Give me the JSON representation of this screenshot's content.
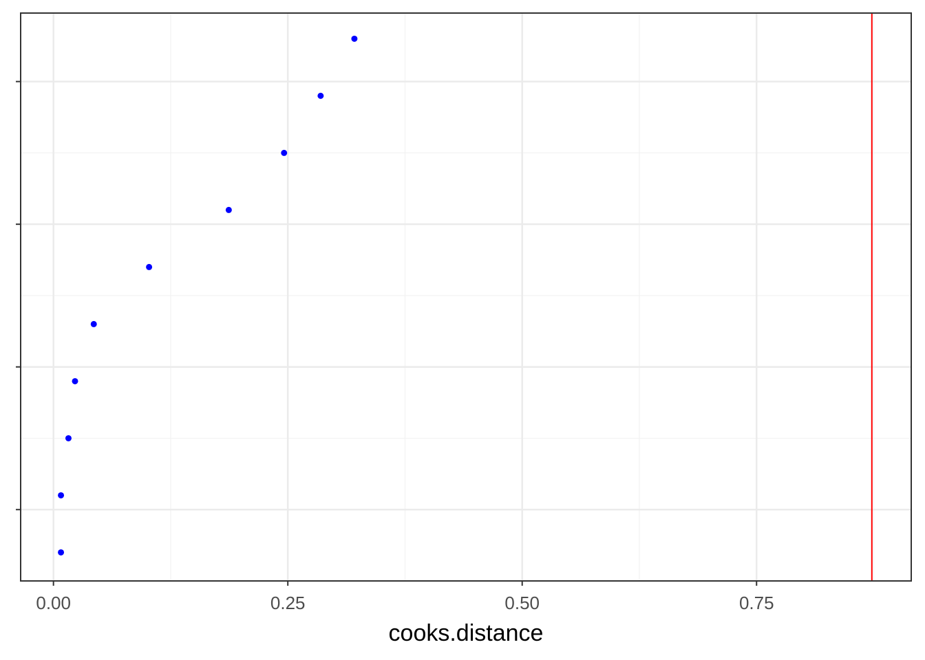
{
  "chart_data": {
    "type": "scatter",
    "title": "",
    "xlabel": "cooks.distance",
    "ylabel": "",
    "xlim": [
      -0.035,
      0.915
    ],
    "ylim": [
      0.5,
      10.45
    ],
    "x_ticks": [
      0.0,
      0.25,
      0.5,
      0.75
    ],
    "x_tick_labels": [
      "0.00",
      "0.25",
      "0.50",
      "0.75"
    ],
    "y_ticks": [
      1.75,
      4.25,
      6.75,
      9.25
    ],
    "grid": true,
    "point_color": "#0000ff",
    "series": [
      {
        "points": [
          {
            "x": 0.008,
            "y": 1
          },
          {
            "x": 0.008,
            "y": 2
          },
          {
            "x": 0.016,
            "y": 3
          },
          {
            "x": 0.023,
            "y": 4
          },
          {
            "x": 0.043,
            "y": 5
          },
          {
            "x": 0.102,
            "y": 6
          },
          {
            "x": 0.187,
            "y": 7
          },
          {
            "x": 0.246,
            "y": 8
          },
          {
            "x": 0.285,
            "y": 9
          },
          {
            "x": 0.321,
            "y": 10
          }
        ]
      }
    ],
    "reference_lines": [
      {
        "orientation": "vertical",
        "x": 0.873,
        "color": "#ff0000"
      }
    ]
  }
}
